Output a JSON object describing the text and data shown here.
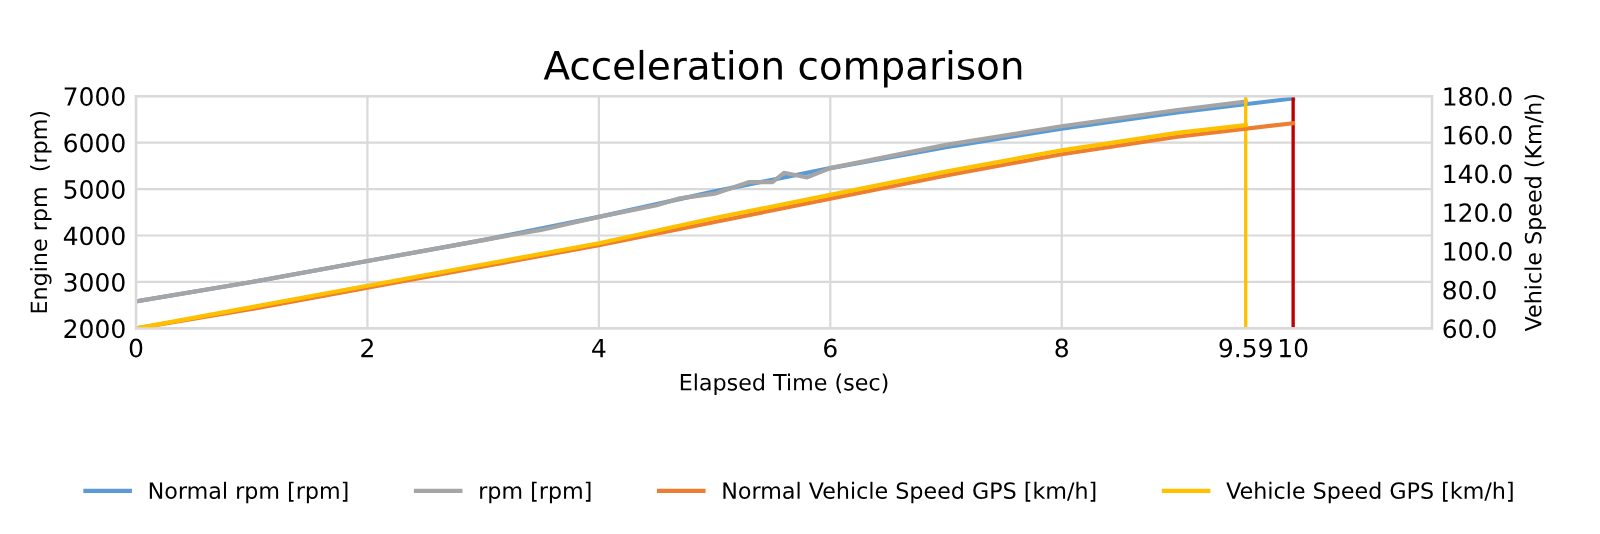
{
  "chart_data": {
    "type": "line",
    "title": "Acceleration comparison",
    "xlabel": "Elapsed Time (sec)",
    "ylabel": "Engine rpm  (rpm)",
    "y2label": "Vehicle Speed (Km/h)",
    "xlim": [
      0,
      11.2
    ],
    "xticks": [
      0,
      2,
      4,
      6,
      8,
      9.59,
      10
    ],
    "ylim": [
      2000,
      7000
    ],
    "yticks": [
      2000,
      3000,
      4000,
      5000,
      6000,
      7000
    ],
    "y2lim": [
      60,
      180
    ],
    "y2ticks": [
      {
        "value": 60,
        "label": "60.0"
      },
      {
        "value": 80,
        "label": "80.0"
      },
      {
        "value": 100,
        "label": "100.0"
      },
      {
        "value": 120,
        "label": "120.0"
      },
      {
        "value": 140,
        "label": "140.0"
      },
      {
        "value": 160,
        "label": "160.0"
      },
      {
        "value": 180,
        "label": "180.0"
      }
    ],
    "grid": true,
    "legend": "bottom",
    "series": [
      {
        "name": "Normal rpm [rpm]",
        "color": "#5b9bd5",
        "x": [
          0,
          1,
          2,
          3,
          4,
          5,
          6,
          7,
          8,
          9,
          10
        ],
        "values": [
          2580,
          3000,
          3450,
          3900,
          4400,
          4950,
          5450,
          5900,
          6300,
          6650,
          6950
        ]
      },
      {
        "name": "rpm [rpm]",
        "color": "#a5a5a5",
        "x": [
          0,
          1,
          2,
          3,
          3.5,
          4,
          4.5,
          4.7,
          5,
          5.3,
          5.5,
          5.6,
          5.8,
          6,
          7,
          8,
          9,
          9.59
        ],
        "values": [
          2580,
          3000,
          3450,
          3900,
          4120,
          4400,
          4650,
          4800,
          4900,
          5150,
          5150,
          5350,
          5250,
          5450,
          5950,
          6350,
          6700,
          6880
        ]
      },
      {
        "name": "Normal Vehicle Speed GPS [km/h]",
        "color": "#ed7d31",
        "axis": "y2",
        "x": [
          0,
          1,
          2,
          3,
          4,
          5,
          6,
          7,
          8,
          9,
          10
        ],
        "values": [
          60,
          70,
          81,
          92,
          103,
          115,
          127,
          139,
          150,
          159,
          166
        ]
      },
      {
        "name": "Vehicle Speed GPS [km/h]",
        "color": "#ffc000",
        "axis": "y2",
        "x": [
          0,
          1,
          2,
          3,
          4,
          5,
          6,
          7,
          8,
          9,
          9.59
        ],
        "values": [
          60,
          71,
          82,
          93,
          104,
          117,
          129,
          141,
          152,
          161,
          165
        ]
      }
    ],
    "ref_lines": [
      {
        "axis": "x",
        "value": 9.59,
        "color": "#ffc000"
      },
      {
        "axis": "x",
        "value": 10,
        "color": "#c00000"
      }
    ]
  }
}
